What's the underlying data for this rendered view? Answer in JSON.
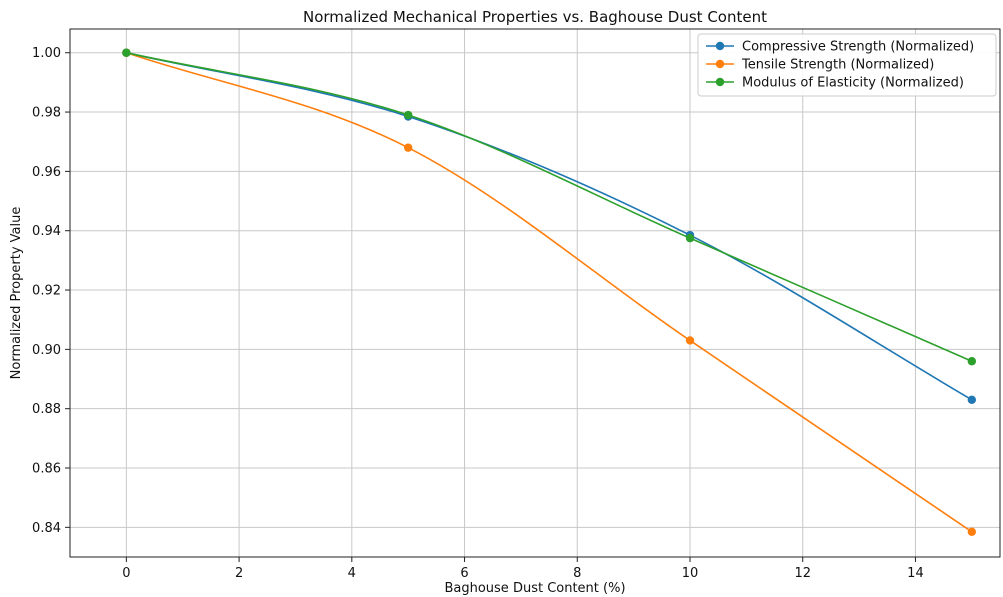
{
  "chart_data": {
    "type": "line",
    "title": "Normalized Mechanical Properties vs. Baghouse Dust Content",
    "xlabel": "Baghouse Dust Content (%)",
    "ylabel": "Normalized Property Value",
    "xlim": [
      -1,
      15.5
    ],
    "ylim": [
      0.83,
      1.008
    ],
    "xticks": [
      0,
      2,
      4,
      6,
      8,
      10,
      12,
      14
    ],
    "yticks": [
      0.84,
      0.86,
      0.88,
      0.9,
      0.92,
      0.94,
      0.96,
      0.98,
      1.0
    ],
    "ytick_labels": [
      "0.84",
      "0.86",
      "0.88",
      "0.90",
      "0.92",
      "0.94",
      "0.96",
      "0.98",
      "1.00"
    ],
    "grid": true,
    "legend_position": "top-right",
    "x": [
      0,
      5,
      10,
      15
    ],
    "series": [
      {
        "name": "Compressive Strength (Normalized)",
        "color": "#1f77b4",
        "values": [
          1.0,
          0.9785,
          0.9385,
          0.883
        ]
      },
      {
        "name": "Tensile Strength (Normalized)",
        "color": "#ff7f0e",
        "values": [
          1.0,
          0.968,
          0.903,
          0.8385
        ]
      },
      {
        "name": "Modulus of Elasticity (Normalized)",
        "color": "#2ca02c",
        "values": [
          1.0,
          0.979,
          0.9375,
          0.896
        ]
      }
    ]
  }
}
